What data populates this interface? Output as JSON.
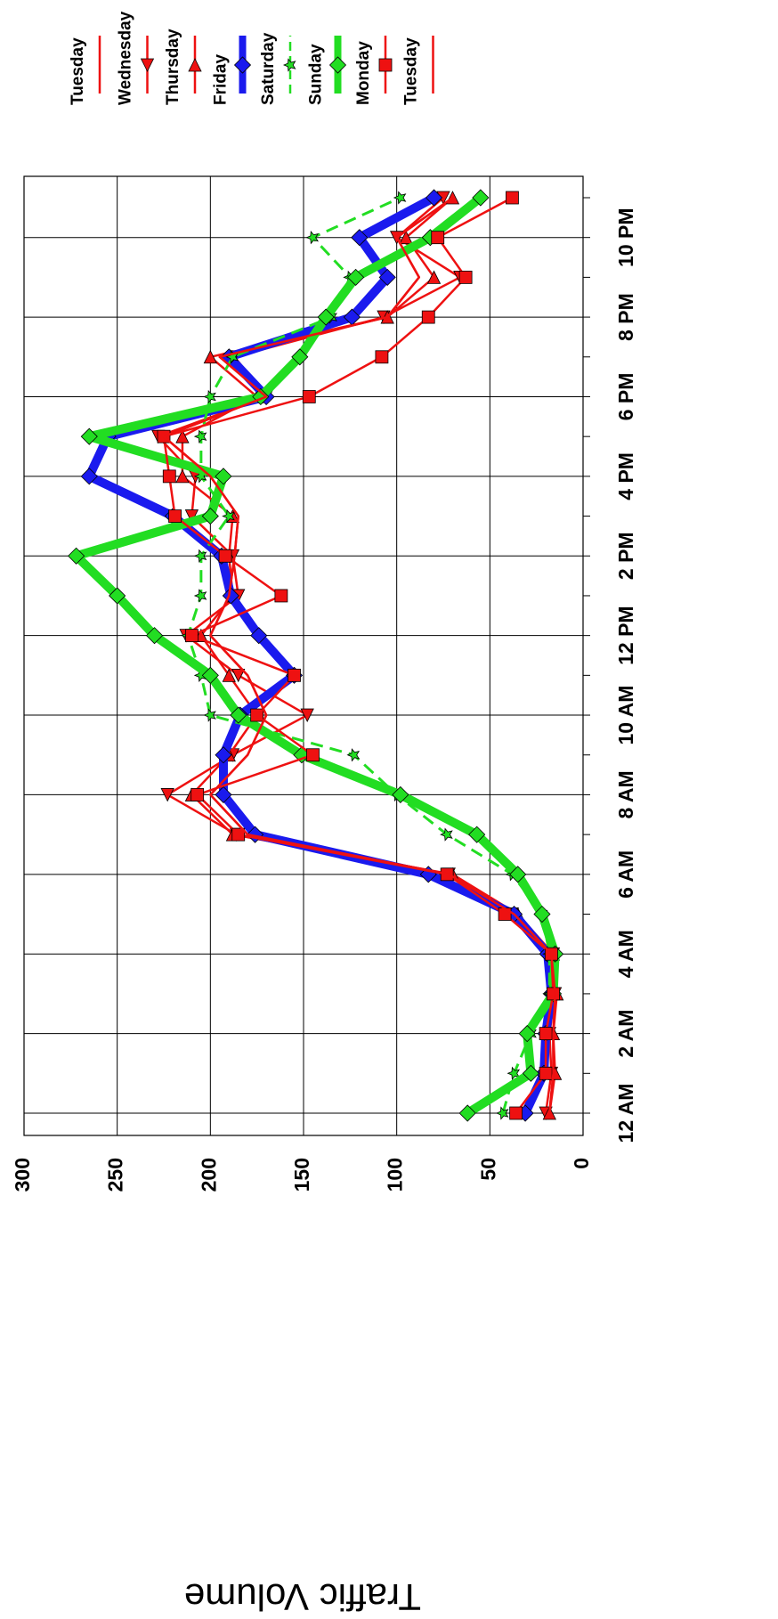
{
  "chart_data": {
    "type": "line",
    "y_label": "Traffic Volume",
    "categories": [
      "12 AM",
      null,
      "2 AM",
      null,
      "4 AM",
      null,
      "6 AM",
      null,
      "8 AM",
      null,
      "10 AM",
      null,
      "12 PM",
      null,
      "2 PM",
      null,
      "4 PM",
      null,
      "6 PM",
      null,
      "8 PM",
      null,
      "10 PM",
      null
    ],
    "ylim": [
      0,
      300
    ],
    "yticks": [
      0,
      50,
      100,
      150,
      200,
      250,
      300
    ],
    "grid": true,
    "rotated": true,
    "series": [
      {
        "name": "Tuesday",
        "color": "#ee1111",
        "marker": "none",
        "line_width": 2.5,
        "dash": false,
        "values": [
          18,
          16,
          16,
          15,
          17,
          37,
          72,
          180,
          200,
          180,
          170,
          180,
          200,
          190,
          187,
          185,
          200,
          225,
          170,
          195,
          105,
          88,
          100,
          70
        ]
      },
      {
        "name": "Wednesday",
        "color": "#ee1111",
        "marker": "triangle-left",
        "line_width": 2.5,
        "dash": false,
        "values": [
          20,
          17,
          18,
          15,
          16,
          38,
          72,
          186,
          223,
          188,
          148,
          185,
          213,
          185,
          188,
          210,
          208,
          228,
          170,
          187,
          107,
          66,
          100,
          75
        ]
      },
      {
        "name": "Thursday",
        "color": "#ee1111",
        "marker": "triangle-right",
        "line_width": 2.5,
        "dash": false,
        "values": [
          18,
          15,
          16,
          14,
          16,
          35,
          70,
          188,
          210,
          190,
          175,
          190,
          205,
          188,
          190,
          188,
          215,
          215,
          175,
          200,
          105,
          80,
          95,
          70
        ]
      },
      {
        "name": "Friday",
        "color": "#1a1aee",
        "marker": "diamond",
        "line_width": 10,
        "dash": false,
        "values": [
          31,
          21,
          20,
          17,
          19,
          37,
          83,
          176,
          193,
          193,
          184,
          155,
          174,
          189,
          194,
          220,
          265,
          255,
          170,
          190,
          124,
          105,
          120,
          80
        ]
      },
      {
        "name": "Saturday",
        "color": "#22dd22",
        "marker": "star",
        "line_width": 3,
        "dash": true,
        "values": [
          43,
          37,
          28,
          18,
          18,
          22,
          38,
          73,
          100,
          123,
          200,
          205,
          212,
          205,
          205,
          190,
          205,
          205,
          200,
          188,
          135,
          125,
          145,
          98
        ]
      },
      {
        "name": "Sunday",
        "color": "#22dd22",
        "marker": "diamond",
        "line_width": 10,
        "dash": false,
        "values": [
          62,
          28,
          30,
          16,
          15,
          22,
          35,
          57,
          98,
          151,
          185,
          200,
          230,
          250,
          272,
          200,
          193,
          265,
          173,
          152,
          138,
          122,
          82,
          55
        ]
      },
      {
        "name": "Monday",
        "color": "#ee1111",
        "marker": "square",
        "line_width": 2.5,
        "dash": false,
        "values": [
          36,
          20,
          20,
          16,
          17,
          42,
          73,
          185,
          207,
          145,
          175,
          155,
          210,
          162,
          192,
          219,
          222,
          225,
          147,
          108,
          83,
          63,
          78,
          38
        ]
      },
      {
        "name": "Tuesday",
        "color": "#ee1111",
        "marker": "none",
        "line_width": 2.5,
        "dash": false,
        "values": [
          18,
          16,
          16,
          15,
          17,
          37,
          72,
          180,
          200,
          180,
          170,
          180,
          200,
          190,
          187,
          185,
          200,
          225,
          170,
          195,
          105,
          88,
          100,
          70
        ]
      }
    ]
  }
}
